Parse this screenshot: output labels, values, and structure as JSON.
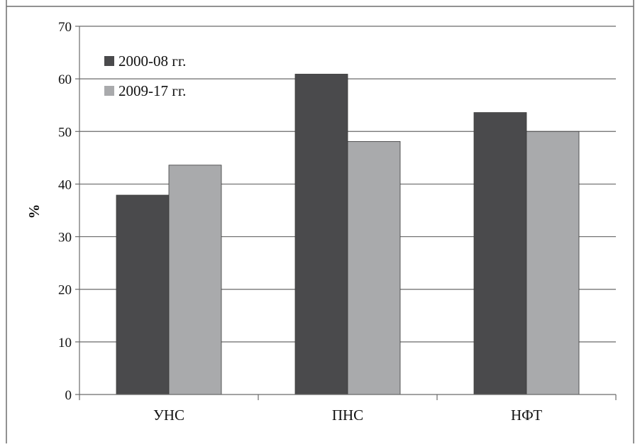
{
  "chart_data": {
    "type": "bar",
    "categories": [
      "УНС",
      "ПНС",
      "НФТ"
    ],
    "series": [
      {
        "name": "2000-08  гг.",
        "values": [
          37.9,
          60.9,
          53.6
        ],
        "color": "#4a4a4c"
      },
      {
        "name": "2009-17  гг.",
        "values": [
          43.6,
          48.1,
          50.0
        ],
        "color": "#a9aaac"
      }
    ],
    "ylabel": "%",
    "ylim": [
      0,
      70
    ],
    "yticks": [
      0,
      10,
      20,
      30,
      40,
      50,
      60,
      70
    ],
    "grid": true,
    "legend_position": "top-left"
  }
}
